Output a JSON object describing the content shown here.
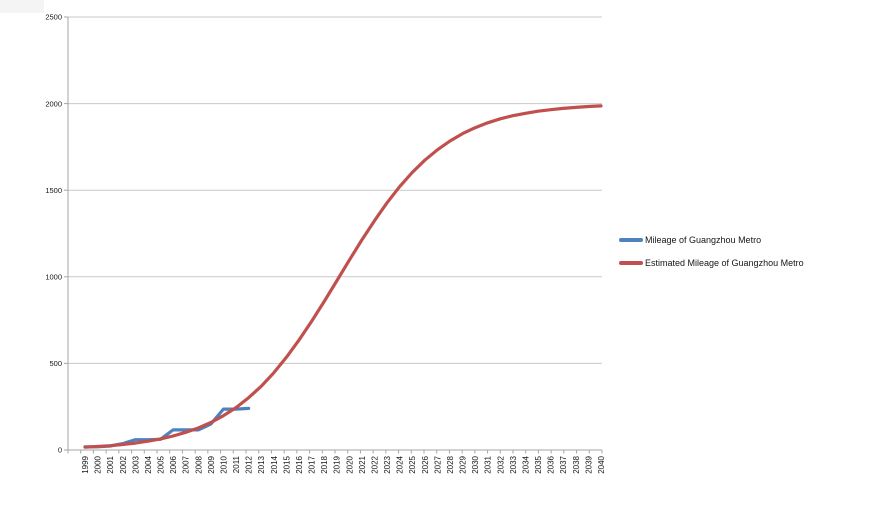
{
  "chart_data": {
    "type": "line",
    "title": "",
    "xlabel": "",
    "ylabel": "",
    "x_categories": [
      "1999",
      "2000",
      "2001",
      "2002",
      "2003",
      "2004",
      "2005",
      "2006",
      "2007",
      "2008",
      "2009",
      "2010",
      "2011",
      "2012",
      "2013",
      "2014",
      "2015",
      "2016",
      "2017",
      "2018",
      "2019",
      "2020",
      "2021",
      "2022",
      "2023",
      "2024",
      "2025",
      "2026",
      "2027",
      "2028",
      "2029",
      "2030",
      "2031",
      "2032",
      "2033",
      "2034",
      "2035",
      "2036",
      "2037",
      "2038",
      "2039",
      "2040"
    ],
    "y_ticks": [
      0,
      500,
      1000,
      1500,
      2000,
      2500
    ],
    "ylim": [
      0,
      2500
    ],
    "grid": true,
    "legend_position": "right",
    "series": [
      {
        "name": "Mileage of Guangzhou Metro",
        "color": "#4F81BD",
        "values": [
          18.5,
          18.5,
          23,
          36.7,
          59.5,
          59.5,
          62,
          116,
          116,
          116,
          150,
          236,
          236,
          240
        ]
      },
      {
        "name": "Estimated Mileage of Guangzhou Metro",
        "color": "#C0504D",
        "values": [
          16,
          20,
          25,
          32,
          40,
          51,
          64,
          81,
          102,
          127,
          159,
          198,
          245,
          302,
          368,
          446,
          535,
          634,
          742,
          857,
          976,
          1096,
          1213,
          1324,
          1427,
          1520,
          1602,
          1673,
          1733,
          1784,
          1827,
          1861,
          1889,
          1912,
          1930,
          1944,
          1956,
          1965,
          1972,
          1978,
          1983,
          1987
        ]
      }
    ]
  },
  "colors": {
    "gridline": "#c9c9c9",
    "axis": "#a6a6a6",
    "tick": "#a6a6a6",
    "label_text": "#161616",
    "background": "#ffffff"
  }
}
